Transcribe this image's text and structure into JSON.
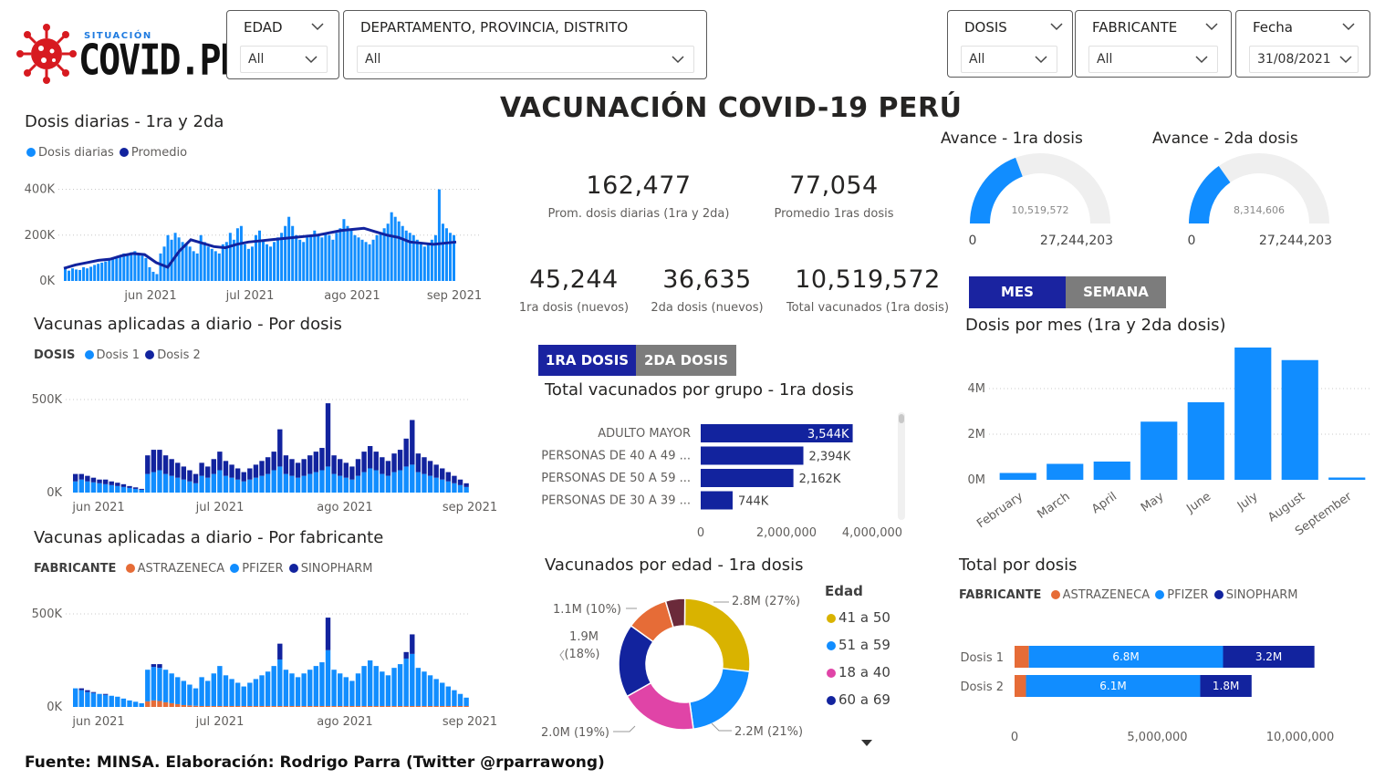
{
  "logo": {
    "small": "SITUACIÓN",
    "big": "COVID.PE"
  },
  "filters": [
    {
      "key": "edad",
      "label": "EDAD",
      "value": "All"
    },
    {
      "key": "region",
      "label": "DEPARTAMENTO, PROVINCIA, DISTRITO",
      "value": "All"
    },
    {
      "key": "dosis",
      "label": "DOSIS",
      "value": "All"
    },
    {
      "key": "fabricante",
      "label": "FABRICANTE",
      "value": "All"
    },
    {
      "key": "fecha",
      "label": "Fecha",
      "value": "31/08/2021"
    }
  ],
  "title": "VACUNACIÓN COVID-19 PERÚ",
  "kpis": {
    "prom_diarias": {
      "value": "162,477",
      "label": "Prom. dosis diarias (1ra y 2da)"
    },
    "prom_1ras": {
      "value": "77,054",
      "label": "Promedio 1ras dosis"
    },
    "primera_nuevos": {
      "value": "45,244",
      "label": "1ra dosis (nuevos)"
    },
    "segunda_nuevos": {
      "value": "36,635",
      "label": "2da dosis (nuevos)"
    },
    "total_vacunados": {
      "value": "10,519,572",
      "label": "Total vacunados (1ra dosis)"
    }
  },
  "gauges": [
    {
      "title": "Avance - 1ra dosis",
      "value_label": "10,519,572",
      "value": 10519572,
      "min_label": "0",
      "max_label": "27,244,203",
      "max": 27244203
    },
    {
      "title": "Avance - 2da dosis",
      "value_label": "8,314,606",
      "value": 8314606,
      "min_label": "0",
      "max_label": "27,244,203",
      "max": 27244203
    }
  ],
  "toggles": {
    "mes_semana": [
      "MES",
      "SEMANA"
    ],
    "dosis": [
      "1RA DOSIS",
      "2DA DOSIS"
    ]
  },
  "sections": {
    "daily": "Dosis diarias - 1ra y 2da",
    "by_dose": "Vacunas aplicadas a diario - Por dosis",
    "by_maker": "Vacunas aplicadas a diario - Por fabricante",
    "by_group": "Total vacunados por grupo - 1ra dosis",
    "by_age": "Vacunados por edad - 1ra dosis",
    "by_month": "Dosis por mes (1ra y 2da dosis)",
    "total_by_dose": "Total por dosis"
  },
  "legends": {
    "daily": [
      "Dosis diarias",
      "Promedio"
    ],
    "by_dose": {
      "title": "DOSIS",
      "items": [
        "Dosis 1",
        "Dosis 2"
      ]
    },
    "by_maker": {
      "title": "FABRICANTE",
      "items": [
        "ASTRAZENECA",
        "PFIZER",
        "SINOPHARM"
      ]
    },
    "total_by_dose": {
      "title": "FABRICANTE",
      "items": [
        "ASTRAZENECA",
        "PFIZER",
        "SINOPHARM"
      ]
    },
    "age": {
      "title": "Edad",
      "items": [
        "41 a 50",
        "51 a 59",
        "18 a 40",
        "60 a 69"
      ]
    }
  },
  "colors": {
    "light_blue": "#118dff",
    "dark_blue": "#12239e",
    "orange": "#e66c37",
    "gold": "#d9b300",
    "pink": "#e044a7",
    "maroon": "#6b2a3a",
    "gray_btn": "#7c7c7c"
  },
  "chart_data": [
    {
      "id": "daily",
      "type": "bar",
      "title": "Dosis diarias - 1ra y 2da",
      "x_ticks": [
        "jun 2021",
        "jul 2021",
        "ago 2021",
        "sep 2021"
      ],
      "y_ticks": [
        "0K",
        "200K",
        "400K"
      ],
      "ylim": [
        0,
        450000
      ],
      "series": [
        {
          "name": "Dosis diarias",
          "values": [
            60000,
            45000,
            55000,
            50000,
            48000,
            60000,
            55000,
            62000,
            70000,
            75000,
            80000,
            85000,
            90000,
            95000,
            100000,
            110000,
            120000,
            115000,
            125000,
            130000,
            120000,
            110000,
            100000,
            60000,
            40000,
            30000,
            120000,
            150000,
            200000,
            180000,
            210000,
            190000,
            170000,
            160000,
            150000,
            130000,
            120000,
            200000,
            170000,
            150000,
            140000,
            130000,
            120000,
            160000,
            170000,
            210000,
            180000,
            230000,
            240000,
            160000,
            140000,
            150000,
            200000,
            220000,
            180000,
            160000,
            150000,
            170000,
            190000,
            210000,
            240000,
            280000,
            240000,
            200000,
            180000,
            170000,
            190000,
            200000,
            220000,
            200000,
            190000,
            210000,
            200000,
            180000,
            210000,
            230000,
            270000,
            240000,
            220000,
            200000,
            190000,
            180000,
            170000,
            160000,
            180000,
            200000,
            210000,
            230000,
            250000,
            300000,
            280000,
            260000,
            240000,
            220000,
            210000,
            200000,
            180000,
            160000,
            150000,
            160000,
            180000,
            200000,
            400000,
            250000,
            230000,
            210000,
            200000
          ]
        },
        {
          "name": "Promedio",
          "values": [
            55000,
            70000,
            80000,
            90000,
            95000,
            110000,
            120000,
            115000,
            80000,
            60000,
            130000,
            180000,
            165000,
            150000,
            145000,
            160000,
            170000,
            175000,
            180000,
            185000,
            190000,
            195000,
            200000,
            210000,
            220000,
            225000,
            230000,
            215000,
            200000,
            190000,
            170000,
            165000,
            160000,
            165000,
            170000
          ]
        }
      ]
    },
    {
      "id": "by_dose",
      "type": "bar",
      "title": "Vacunas aplicadas a diario - Por dosis",
      "x_ticks": [
        "jun 2021",
        "jul 2021",
        "ago 2021",
        "sep 2021"
      ],
      "y_ticks": [
        "0K",
        "500K"
      ],
      "ylim": [
        0,
        500000
      ],
      "series": [
        {
          "name": "Dosis 1",
          "values": [
            60000,
            70000,
            60000,
            55000,
            50000,
            45000,
            40000,
            35000,
            30000,
            25000,
            20000,
            15000,
            100000,
            110000,
            120000,
            100000,
            90000,
            80000,
            70000,
            60000,
            50000,
            90000,
            80000,
            100000,
            120000,
            90000,
            80000,
            70000,
            60000,
            70000,
            80000,
            90000,
            100000,
            120000,
            140000,
            100000,
            90000,
            80000,
            90000,
            100000,
            110000,
            120000,
            140000,
            100000,
            90000,
            80000,
            70000,
            90000,
            110000,
            130000,
            120000,
            100000,
            90000,
            110000,
            120000,
            140000,
            150000,
            110000,
            100000,
            90000,
            80000,
            70000,
            60000,
            50000,
            40000,
            30000
          ]
        },
        {
          "name": "Dosis 2",
          "values": [
            40000,
            30000,
            30000,
            25000,
            20000,
            25000,
            20000,
            18000,
            15000,
            10000,
            8000,
            5000,
            100000,
            120000,
            110000,
            100000,
            90000,
            80000,
            70000,
            60000,
            50000,
            70000,
            60000,
            80000,
            100000,
            80000,
            70000,
            60000,
            50000,
            60000,
            70000,
            80000,
            90000,
            100000,
            200000,
            100000,
            90000,
            80000,
            90000,
            100000,
            110000,
            120000,
            340000,
            100000,
            90000,
            80000,
            70000,
            90000,
            110000,
            120000,
            100000,
            90000,
            80000,
            100000,
            110000,
            150000,
            240000,
            100000,
            90000,
            80000,
            70000,
            60000,
            50000,
            40000,
            30000,
            20000
          ]
        }
      ]
    },
    {
      "id": "by_maker",
      "type": "bar",
      "title": "Vacunas aplicadas a diario - Por fabricante",
      "x_ticks": [
        "jun 2021",
        "jul 2021",
        "ago 2021",
        "sep 2021"
      ],
      "y_ticks": [
        "0K",
        "500K"
      ],
      "ylim": [
        0,
        500000
      ],
      "series": [
        {
          "name": "ASTRAZENECA",
          "values": [
            0,
            0,
            0,
            0,
            0,
            0,
            0,
            0,
            0,
            0,
            0,
            0,
            30000,
            35000,
            32000,
            25000,
            20000,
            15000,
            10000,
            8000,
            6000,
            5000,
            5000,
            5000,
            5000,
            5000,
            5000,
            5000,
            5000,
            5000,
            5000,
            5000,
            5000,
            5000,
            5000,
            5000,
            5000,
            5000,
            5000,
            5000,
            5000,
            5000,
            5000,
            5000,
            5000,
            5000,
            5000,
            5000,
            5000,
            5000,
            5000,
            5000,
            5000,
            5000,
            5000,
            5000,
            5000,
            5000,
            5000,
            5000,
            5000,
            5000,
            5000,
            5000,
            5000,
            5000
          ]
        },
        {
          "name": "PFIZER",
          "values": [
            100000,
            90000,
            80000,
            75000,
            70000,
            65000,
            60000,
            55000,
            45000,
            35000,
            28000,
            20000,
            170000,
            180000,
            178000,
            175000,
            160000,
            145000,
            130000,
            112000,
            94000,
            155000,
            135000,
            175000,
            215000,
            165000,
            145000,
            125000,
            105000,
            125000,
            145000,
            165000,
            185000,
            215000,
            250000,
            195000,
            175000,
            155000,
            175000,
            195000,
            215000,
            235000,
            300000,
            195000,
            175000,
            155000,
            135000,
            175000,
            215000,
            245000,
            215000,
            185000,
            165000,
            205000,
            225000,
            255000,
            280000,
            205000,
            185000,
            165000,
            145000,
            125000,
            105000,
            85000,
            65000,
            45000
          ]
        },
        {
          "name": "SINOPHARM",
          "values": [
            0,
            10000,
            10000,
            5000,
            0,
            5000,
            0,
            0,
            0,
            0,
            0,
            0,
            0,
            15000,
            20000,
            0,
            0,
            0,
            0,
            0,
            0,
            0,
            0,
            0,
            0,
            0,
            0,
            0,
            0,
            0,
            0,
            0,
            0,
            0,
            85000,
            0,
            0,
            0,
            0,
            0,
            0,
            0,
            175000,
            0,
            0,
            0,
            0,
            0,
            0,
            0,
            0,
            0,
            0,
            0,
            0,
            35000,
            105000,
            0,
            0,
            0,
            0,
            0,
            0,
            0,
            0,
            0
          ]
        }
      ]
    },
    {
      "id": "by_group",
      "type": "bar",
      "orientation": "horizontal",
      "title": "Total vacunados por grupo - 1ra dosis",
      "categories": [
        "ADULTO MAYOR",
        "PERSONAS DE 40 A 49 ...",
        "PERSONAS DE 50 A 59 ...",
        "PERSONAS DE 30 A 39 ..."
      ],
      "values": [
        3544000,
        2394000,
        2162000,
        744000
      ],
      "data_labels": [
        "3,544K",
        "2,394K",
        "2,162K",
        "744K"
      ],
      "x_ticks": [
        "0",
        "2,000,000",
        "4,000,000"
      ],
      "xlim": [
        0,
        4000000
      ]
    },
    {
      "id": "by_age",
      "type": "pie",
      "title": "Vacunados por edad - 1ra dosis",
      "slices": [
        {
          "label": "41 a 50",
          "value": 2.8,
          "text": "2.8M (27%)"
        },
        {
          "label": "51 a 59",
          "value": 2.2,
          "text": "2.2M (21%)"
        },
        {
          "label": "18 a 40",
          "value": 2.0,
          "text": "2.0M (19%)"
        },
        {
          "label": "60 a 69",
          "value": 1.9,
          "text_lines": [
            "1.9M",
            "(18%)"
          ]
        },
        {
          "label": "",
          "value": 1.1,
          "text": "1.1M (10%)"
        },
        {
          "label": "",
          "value": 0.5,
          "text": ""
        }
      ]
    },
    {
      "id": "by_month",
      "type": "bar",
      "title": "Dosis por mes (1ra y 2da dosis)",
      "categories": [
        "February",
        "March",
        "April",
        "May",
        "June",
        "July",
        "August",
        "September"
      ],
      "values": [
        300000,
        700000,
        800000,
        2550000,
        3400000,
        5800000,
        5250000,
        100000
      ],
      "y_ticks": [
        "0M",
        "2M",
        "4M"
      ],
      "ylim": [
        0,
        6000000
      ]
    },
    {
      "id": "total_by_dose",
      "type": "bar",
      "orientation": "horizontal",
      "stacked": true,
      "title": "Total por dosis",
      "categories": [
        "Dosis 1",
        "Dosis 2"
      ],
      "series": [
        {
          "name": "ASTRAZENECA",
          "values": [
            500000,
            400000
          ],
          "labels": [
            "",
            ""
          ]
        },
        {
          "name": "PFIZER",
          "values": [
            6800000,
            6100000
          ],
          "labels": [
            "6.8M",
            "6.1M"
          ]
        },
        {
          "name": "SINOPHARM",
          "values": [
            3200000,
            1800000
          ],
          "labels": [
            "3.2M",
            "1.8M"
          ]
        }
      ],
      "x_ticks": [
        "0",
        "5,000,000",
        "10,000,000"
      ],
      "xlim": [
        0,
        12000000
      ]
    }
  ],
  "footer": "Fuente: MINSA. Elaboración: Rodrigo Parra (Twitter @rparrawong)"
}
